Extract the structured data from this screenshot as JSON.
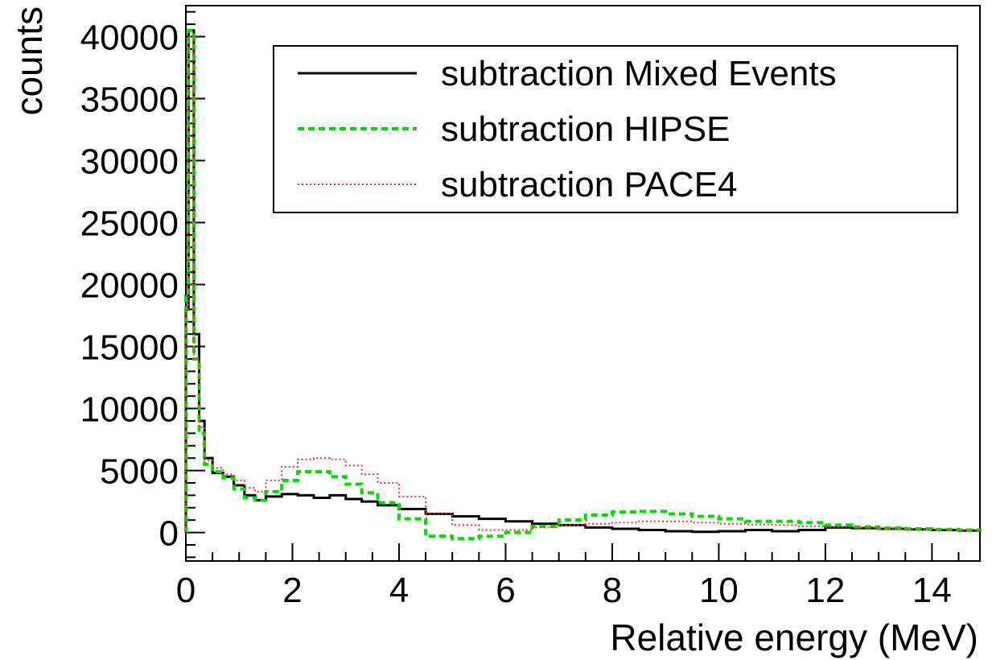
{
  "chart_data": {
    "type": "line",
    "style": "step-histogram",
    "xlabel": "Relative energy (MeV)",
    "ylabel": "counts",
    "xlim": [
      0,
      14.9
    ],
    "ylim": [
      -2300,
      42500
    ],
    "x_ticks": [
      "0",
      "2",
      "4",
      "6",
      "8",
      "10",
      "12",
      "14"
    ],
    "y_ticks": [
      "0",
      "5000",
      "10000",
      "15000",
      "20000",
      "25000",
      "30000",
      "35000",
      "40000"
    ],
    "grid": false,
    "legend_position": "top-right",
    "series": [
      {
        "name": "subtraction Mixed Events",
        "color": "#000000",
        "dash": "solid",
        "x": [
          0.0,
          0.05,
          0.15,
          0.25,
          0.35,
          0.5,
          0.7,
          0.9,
          1.1,
          1.3,
          1.5,
          1.8,
          2.1,
          2.4,
          2.7,
          3.0,
          3.3,
          3.6,
          4.0,
          4.5,
          5.0,
          5.5,
          6.0,
          6.5,
          7.0,
          7.5,
          8.0,
          8.5,
          9.0,
          9.5,
          10.0,
          10.5,
          11.0,
          11.5,
          12.0,
          12.5,
          13.0,
          13.5,
          14.0,
          14.5,
          14.9
        ],
        "y": [
          18000,
          40500,
          16000,
          9000,
          6000,
          4800,
          4500,
          3800,
          3000,
          2600,
          2900,
          3100,
          3000,
          2800,
          3000,
          2700,
          2500,
          2200,
          1900,
          1500,
          1300,
          1100,
          900,
          700,
          600,
          400,
          300,
          200,
          100,
          50,
          100,
          200,
          100,
          200,
          400,
          350,
          300,
          250,
          200,
          150,
          100
        ]
      },
      {
        "name": "subtraction HIPSE",
        "color": "#00dd00",
        "dash": "dashed",
        "x": [
          0.0,
          0.05,
          0.15,
          0.25,
          0.35,
          0.5,
          0.7,
          0.9,
          1.1,
          1.3,
          1.5,
          1.8,
          2.1,
          2.4,
          2.7,
          3.0,
          3.3,
          3.6,
          4.0,
          4.5,
          5.0,
          5.5,
          6.0,
          6.5,
          7.0,
          7.5,
          8.0,
          8.5,
          9.0,
          9.5,
          10.0,
          10.5,
          11.0,
          11.5,
          12.0,
          12.5,
          13.0,
          13.5,
          14.0,
          14.5,
          14.9
        ],
        "y": [
          19000,
          40500,
          14000,
          8000,
          5500,
          4900,
          4400,
          3500,
          2800,
          2600,
          3300,
          4200,
          4900,
          4900,
          4500,
          3900,
          3200,
          2400,
          1100,
          -300,
          -500,
          -300,
          0,
          500,
          1000,
          1400,
          1650,
          1700,
          1500,
          1300,
          1100,
          900,
          900,
          800,
          600,
          450,
          350,
          300,
          250,
          200,
          150
        ]
      },
      {
        "name": "subtraction PACE4",
        "color": "#ff2a2a",
        "dash": "dotted",
        "x": [
          0.0,
          0.05,
          0.15,
          0.25,
          0.35,
          0.5,
          0.7,
          0.9,
          1.1,
          1.3,
          1.5,
          1.8,
          2.1,
          2.4,
          2.7,
          3.0,
          3.3,
          3.6,
          4.0,
          4.5,
          5.0,
          5.5,
          6.0,
          6.5,
          7.0,
          7.5,
          8.0,
          8.5,
          9.0,
          9.5,
          10.0,
          10.5,
          11.0,
          11.5,
          12.0,
          12.5,
          13.0,
          13.5,
          14.0,
          14.5,
          14.9
        ],
        "y": [
          18000,
          40000,
          14000,
          8500,
          5800,
          5200,
          4700,
          4200,
          3600,
          3300,
          4200,
          5300,
          5900,
          6000,
          5900,
          5400,
          4700,
          4000,
          2900,
          1500,
          600,
          200,
          200,
          400,
          600,
          700,
          800,
          900,
          900,
          800,
          700,
          650,
          600,
          500,
          450,
          400,
          300,
          250,
          200,
          150,
          100
        ]
      }
    ]
  }
}
